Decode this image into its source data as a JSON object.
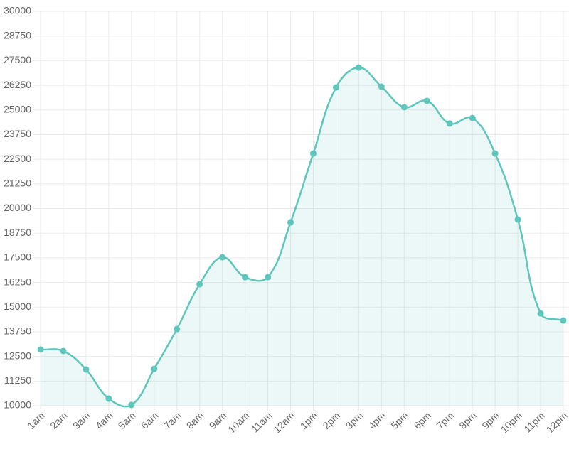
{
  "chart_data": {
    "type": "line",
    "categories": [
      "1am",
      "2am",
      "3am",
      "4am",
      "5am",
      "6am",
      "7am",
      "8am",
      "9am",
      "10am",
      "11am",
      "12am",
      "1pm",
      "2pm",
      "3pm",
      "4pm",
      "5pm",
      "6pm",
      "7pm",
      "8pm",
      "9pm",
      "10pm",
      "11pm",
      "12pm"
    ],
    "series": [
      {
        "color": "#5ec6ba",
        "values": [
          12850,
          12775,
          11840,
          10360,
          10040,
          11870,
          13890,
          16160,
          17530,
          16520,
          16520,
          19300,
          22790,
          26140,
          27150,
          26180,
          25140,
          25460,
          24310,
          24590,
          22790,
          19440,
          14680,
          14320
        ]
      }
    ],
    "ylim": [
      10000,
      30000
    ],
    "yticks": [
      10000,
      11250,
      12500,
      13750,
      15000,
      16250,
      17500,
      18750,
      20000,
      21250,
      22500,
      23750,
      25000,
      26250,
      27500,
      28750,
      30000
    ],
    "grid": true,
    "fill": true
  }
}
